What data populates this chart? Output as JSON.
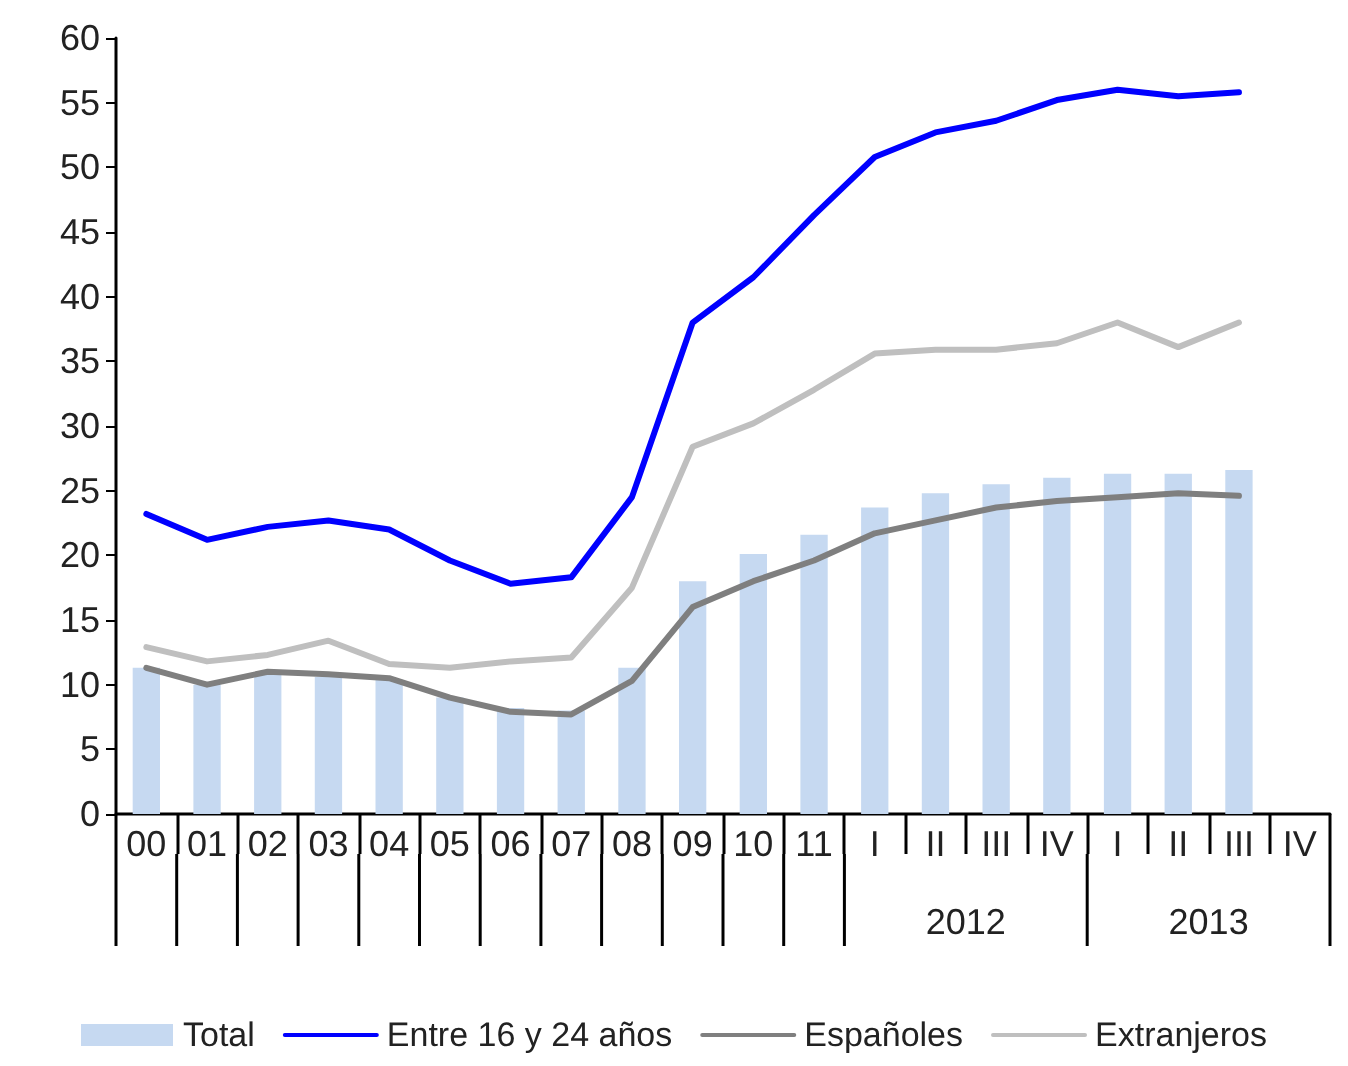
{
  "chart_data": {
    "type": "bar",
    "categories": [
      "00",
      "01",
      "02",
      "03",
      "04",
      "05",
      "06",
      "07",
      "08",
      "09",
      "10",
      "11",
      "I",
      "II",
      "III",
      "IV",
      "I",
      "II",
      "III",
      "IV"
    ],
    "annotations": [
      "2012",
      "2013"
    ],
    "series": [
      {
        "name": "Total",
        "color": "#c6d9f1",
        "values": [
          11.3,
          10.0,
          10.8,
          10.6,
          10.4,
          9.0,
          8.2,
          8.0,
          11.3,
          18.0,
          20.1,
          21.6,
          23.7,
          24.8,
          25.5,
          26.0,
          26.3,
          26.3,
          26.6,
          null
        ]
      },
      {
        "name": "Entre 16 y 24 años",
        "type": "line",
        "color": "#0000ff",
        "values": [
          23.2,
          21.2,
          22.2,
          22.7,
          22.0,
          19.6,
          17.8,
          18.3,
          24.5,
          38.0,
          41.5,
          46.3,
          50.8,
          52.7,
          53.6,
          55.2,
          56.0,
          55.5,
          55.8,
          null
        ]
      },
      {
        "name": "Españoles",
        "type": "line",
        "color": "#7f7f7f",
        "values": [
          11.3,
          10.0,
          11.0,
          10.8,
          10.5,
          9.0,
          7.9,
          7.7,
          10.3,
          16.0,
          18.0,
          19.6,
          21.7,
          22.7,
          23.7,
          24.2,
          24.5,
          24.8,
          24.6,
          null
        ]
      },
      {
        "name": "Extranjeros",
        "type": "line",
        "color": "#bfbfbf",
        "values": [
          12.9,
          11.8,
          12.3,
          13.4,
          11.6,
          11.3,
          11.8,
          12.1,
          17.5,
          28.4,
          30.2,
          32.8,
          35.6,
          35.9,
          35.9,
          36.4,
          38.0,
          36.1,
          38.0,
          null
        ]
      }
    ],
    "ylim": [
      0,
      60
    ],
    "yticks": [
      0,
      5,
      10,
      15,
      20,
      25,
      30,
      35,
      40,
      45,
      50,
      55,
      60
    ],
    "grid": false,
    "legend": "bottom",
    "marker": "none",
    "line_style": "solid"
  }
}
